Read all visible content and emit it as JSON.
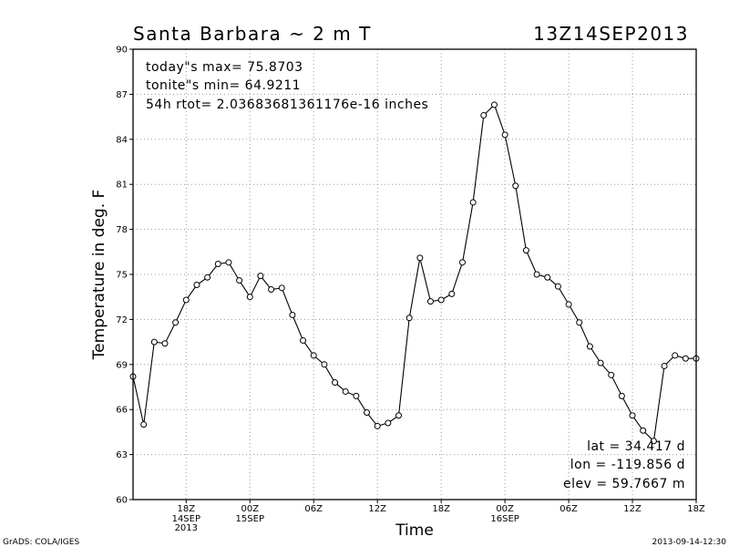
{
  "header": {
    "title": "Santa Barbara ~ 2 m T",
    "datetime": "13Z14SEP2013"
  },
  "annotations": {
    "max_line": "today\"s max= 75.8703",
    "min_line": "tonite\"s min= 64.9211",
    "rtot_line": "54h rtot= 2.03683681361176e-16 inches",
    "lat_line": "lat = 34.417 d",
    "lon_line": "lon = -119.856 d",
    "elev_line": "elev = 59.7667 m"
  },
  "footer": {
    "left": "GrADS: COLA/IGES",
    "right": "2013-09-14-12:30"
  },
  "colors": {
    "line": "#000000",
    "grid": "#9a9a9a",
    "background": "#ffffff"
  },
  "chart_data": {
    "type": "line",
    "title": "Santa Barbara ~ 2 m T",
    "xlabel": "Time",
    "ylabel": "Temperature in deg. F",
    "xlim": [
      13,
      66
    ],
    "ylim": [
      60,
      90
    ],
    "grid": true,
    "legend": "none",
    "yticks": [
      60,
      63,
      66,
      69,
      72,
      75,
      78,
      81,
      84,
      87,
      90
    ],
    "xticks": [
      {
        "x": 18,
        "label": "18Z",
        "sublabels": [
          "14SEP",
          "2013"
        ]
      },
      {
        "x": 24,
        "label": "00Z",
        "sublabels": [
          "15SEP"
        ]
      },
      {
        "x": 30,
        "label": "06Z",
        "sublabels": []
      },
      {
        "x": 36,
        "label": "12Z",
        "sublabels": []
      },
      {
        "x": 42,
        "label": "18Z",
        "sublabels": []
      },
      {
        "x": 48,
        "label": "00Z",
        "sublabels": [
          "16SEP"
        ]
      },
      {
        "x": 54,
        "label": "06Z",
        "sublabels": []
      },
      {
        "x": 60,
        "label": "12Z",
        "sublabels": []
      },
      {
        "x": 66,
        "label": "18Z",
        "sublabels": []
      }
    ],
    "series": [
      {
        "x": [
          13,
          14,
          15,
          16,
          17,
          18,
          19,
          20,
          21,
          22,
          23,
          24,
          25,
          26,
          27,
          28,
          29,
          30,
          31,
          32,
          33,
          34,
          35,
          36,
          37,
          38,
          39,
          40,
          41,
          42,
          43,
          44,
          45,
          46,
          47,
          48,
          49,
          50,
          51,
          52,
          53,
          54,
          55,
          56,
          57,
          58,
          59,
          60,
          61,
          62,
          63,
          64,
          65,
          66
        ],
        "values": [
          68.2,
          65.0,
          70.5,
          70.4,
          71.8,
          73.3,
          74.3,
          74.8,
          75.7,
          75.8,
          74.6,
          73.5,
          74.9,
          74.0,
          74.1,
          72.3,
          70.6,
          69.6,
          69.0,
          67.8,
          67.2,
          66.9,
          65.8,
          64.9,
          65.1,
          65.6,
          72.1,
          76.1,
          73.2,
          73.3,
          73.7,
          75.8,
          79.8,
          85.6,
          86.3,
          84.3,
          80.9,
          76.6,
          75.0,
          74.8,
          74.2,
          73.0,
          71.8,
          70.2,
          69.1,
          68.3,
          66.9,
          65.6,
          64.6,
          63.9,
          68.9,
          69.6,
          69.4,
          69.4
        ]
      }
    ]
  }
}
